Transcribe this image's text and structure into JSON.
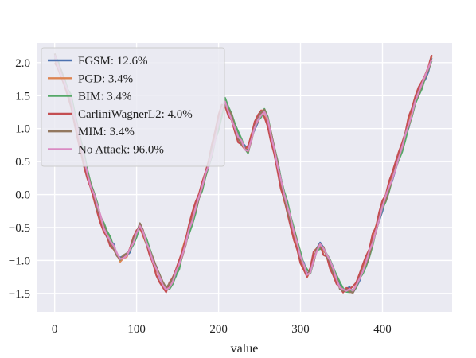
{
  "chart_data": {
    "type": "line",
    "title": "",
    "xlabel": "value",
    "ylabel": "",
    "xlim": [
      -22,
      485
    ],
    "ylim": [
      -1.78,
      2.3
    ],
    "xticks": [
      0,
      100,
      200,
      300,
      400
    ],
    "yticks": [
      2.0,
      1.5,
      1.0,
      0.5,
      0.0,
      -0.5,
      -1.0,
      -1.5
    ],
    "xtick_labels": [
      "0",
      "100",
      "200",
      "300",
      "400"
    ],
    "ytick_labels": [
      "2.0",
      "1.5",
      "1.0",
      "0.5",
      "0.0",
      "−0.5",
      "−1.0",
      "−1.5"
    ],
    "grid": true,
    "legend_position": "upper-left",
    "background": "#eaeaf2",
    "x_start": 0,
    "x_end": 462,
    "x_step": 4,
    "base_curve": {
      "x": [
        0,
        20,
        40,
        60,
        80,
        90,
        100,
        105,
        110,
        120,
        130,
        137,
        150,
        170,
        190,
        207,
        215,
        225,
        235,
        245,
        255,
        260,
        280,
        300,
        310,
        318,
        325,
        335,
        350,
        365,
        380,
        400,
        420,
        440,
        462
      ],
      "y": [
        2.1,
        1.45,
        0.3,
        -0.5,
        -1.0,
        -0.9,
        -0.6,
        -0.45,
        -0.65,
        -1.0,
        -1.3,
        -1.47,
        -1.15,
        -0.3,
        0.55,
        1.43,
        1.2,
        0.85,
        0.65,
        1.05,
        1.3,
        1.15,
        0.0,
        -0.95,
        -1.25,
        -0.9,
        -0.75,
        -1.0,
        -1.45,
        -1.45,
        -1.05,
        -0.2,
        0.55,
        1.4,
        2.1
      ]
    },
    "series": [
      {
        "name": "FGSM: 12.6%",
        "color": "#4c72b0",
        "seed": 1,
        "noise": 0.05,
        "dx": 0
      },
      {
        "name": "PGD: 3.4%",
        "color": "#dd8452",
        "seed": 2,
        "noise": 0.04,
        "dx": 1
      },
      {
        "name": "BIM: 3.4%",
        "color": "#55a868",
        "seed": 3,
        "noise": 0.04,
        "dx": -1
      },
      {
        "name": "CarliniWagnerL2: 4.0%",
        "color": "#c44e52",
        "seed": 4,
        "noise": 0.045,
        "dx": 2
      },
      {
        "name": "MIM: 3.4%",
        "color": "#937860",
        "seed": 5,
        "noise": 0.05,
        "dx": 0
      },
      {
        "name": "No Attack: 96.0%",
        "color": "#da8bc3",
        "seed": 6,
        "noise": 0.03,
        "dx": 0
      }
    ]
  }
}
